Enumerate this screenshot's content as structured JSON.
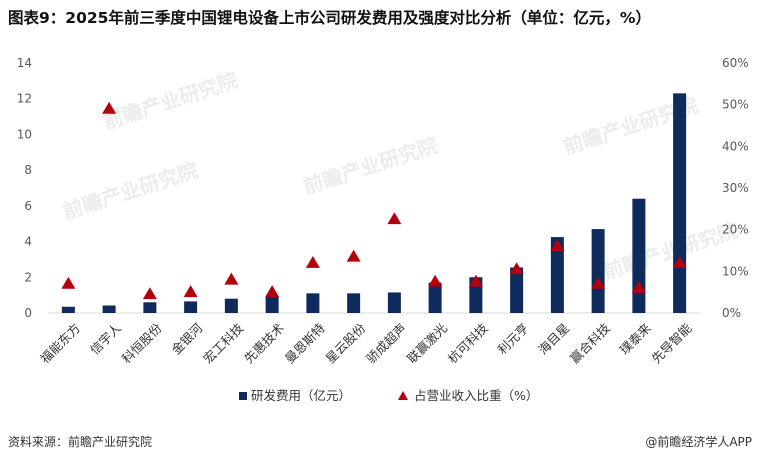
{
  "title": "图表9：2025年前三季度中国锂电设备上市公司研发费用及强度对比分析（单位：亿元，%）",
  "source": "资料来源：前瞻产业研究院",
  "brand": "@前瞻经济学人APP",
  "watermark": "前瞻产业研究院",
  "colors": {
    "bar": "#0f2a5c",
    "marker": "#b3000c",
    "axis": "#d9d9d9",
    "text": "#595959"
  },
  "chart_data": {
    "type": "bar",
    "categories": [
      "福能东方",
      "信宇人",
      "科恒股份",
      "金银河",
      "宏工科技",
      "先惠技术",
      "曼恩斯特",
      "星云股份",
      "骄成超声",
      "联赢激光",
      "杭可科技",
      "利元亨",
      "海目星",
      "赢合科技",
      "璞泰来",
      "先导智能"
    ],
    "series": [
      {
        "name": "研发费用（亿元）",
        "type": "bar",
        "axis": "left",
        "values": [
          0.35,
          0.42,
          0.6,
          0.65,
          0.8,
          0.95,
          1.1,
          1.1,
          1.15,
          1.7,
          2.0,
          2.55,
          4.25,
          4.7,
          6.4,
          12.3
        ]
      },
      {
        "name": "占营业收入比重（%）",
        "type": "scatter",
        "marker": "triangle",
        "axis": "right",
        "values": [
          7,
          49,
          4.5,
          5,
          8,
          5,
          12,
          13.5,
          22.5,
          7.5,
          7.5,
          10.5,
          16,
          7,
          6,
          12
        ]
      }
    ],
    "y_left": {
      "min": 0,
      "max": 14,
      "ticks": [
        0,
        2,
        4,
        6,
        8,
        10,
        12,
        14
      ]
    },
    "y_right": {
      "min": 0,
      "max": 60,
      "ticks": [
        "0%",
        "10%",
        "20%",
        "30%",
        "40%",
        "50%",
        "60%"
      ]
    },
    "legend_position": "bottom",
    "grid": false
  }
}
